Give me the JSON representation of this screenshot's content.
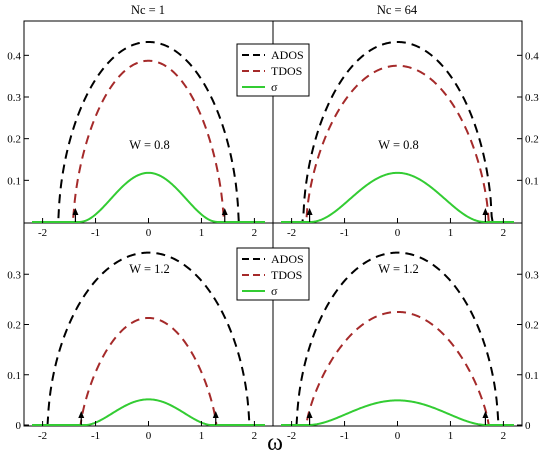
{
  "chart_data": {
    "type": "line",
    "xlabel": "ω",
    "column_titles": [
      "Nc = 1",
      "Nc = 64"
    ],
    "xlim": [
      -2.2,
      2.2
    ],
    "xticks": [
      -2,
      -1,
      0,
      1,
      2
    ],
    "xtick_labels": [
      "-2",
      "-1",
      "0",
      "1",
      "2"
    ],
    "yticks": [
      0,
      0.1,
      0.2,
      0.3,
      0.4
    ],
    "ytick_labels": [
      "0",
      "0.1",
      "0.2",
      "0.3",
      "0.4"
    ],
    "legend": [
      {
        "label": "ADOS",
        "color": "#000000",
        "dash": "dashed"
      },
      {
        "label": "TDOS",
        "color": "#a52a2a",
        "dash": "dashed"
      },
      {
        "label": "σ",
        "color": "#33cc33",
        "dash": "solid"
      }
    ],
    "panels": [
      {
        "row": 0,
        "col": 0,
        "annotation": "W = 0.8",
        "ylim": [
          0,
          0.48
        ],
        "series": [
          {
            "name": "ADOS",
            "band_edge": 1.7,
            "peak": 0.432,
            "shape": 0.55
          },
          {
            "name": "TDOS",
            "band_edge": 1.42,
            "peak": 0.387,
            "shape": 0.62
          },
          {
            "name": "σ",
            "band_edge": 1.32,
            "peak": 0.118,
            "shape": 2.2
          }
        ],
        "arrows_x": [
          -1.38,
          1.44
        ]
      },
      {
        "row": 0,
        "col": 1,
        "annotation": "W = 0.8",
        "ylim": [
          0,
          0.48
        ],
        "series": [
          {
            "name": "ADOS",
            "band_edge": 1.78,
            "peak": 0.432,
            "shape": 0.55
          },
          {
            "name": "TDOS",
            "band_edge": 1.72,
            "peak": 0.375,
            "shape": 0.62
          },
          {
            "name": "σ",
            "band_edge": 1.66,
            "peak": 0.118,
            "shape": 2.2
          }
        ],
        "arrows_x": [
          -1.66,
          1.66
        ]
      },
      {
        "row": 1,
        "col": 0,
        "annotation": "W = 1.2",
        "ylim": [
          0,
          0.4
        ],
        "series": [
          {
            "name": "ADOS",
            "band_edge": 1.9,
            "peak": 0.343,
            "shape": 0.55
          },
          {
            "name": "TDOS",
            "band_edge": 1.28,
            "peak": 0.213,
            "shape": 0.75
          },
          {
            "name": "σ",
            "band_edge": 1.2,
            "peak": 0.051,
            "shape": 2.0
          }
        ],
        "arrows_x": [
          -1.27,
          1.27
        ]
      },
      {
        "row": 1,
        "col": 1,
        "annotation": "W = 1.2",
        "ylim": [
          0,
          0.4
        ],
        "series": [
          {
            "name": "ADOS",
            "band_edge": 1.9,
            "peak": 0.343,
            "shape": 0.55
          },
          {
            "name": "TDOS",
            "band_edge": 1.72,
            "peak": 0.225,
            "shape": 0.75
          },
          {
            "name": "σ",
            "band_edge": 1.68,
            "peak": 0.049,
            "shape": 2.0
          }
        ],
        "arrows_x": [
          -1.66,
          1.66
        ]
      }
    ]
  }
}
